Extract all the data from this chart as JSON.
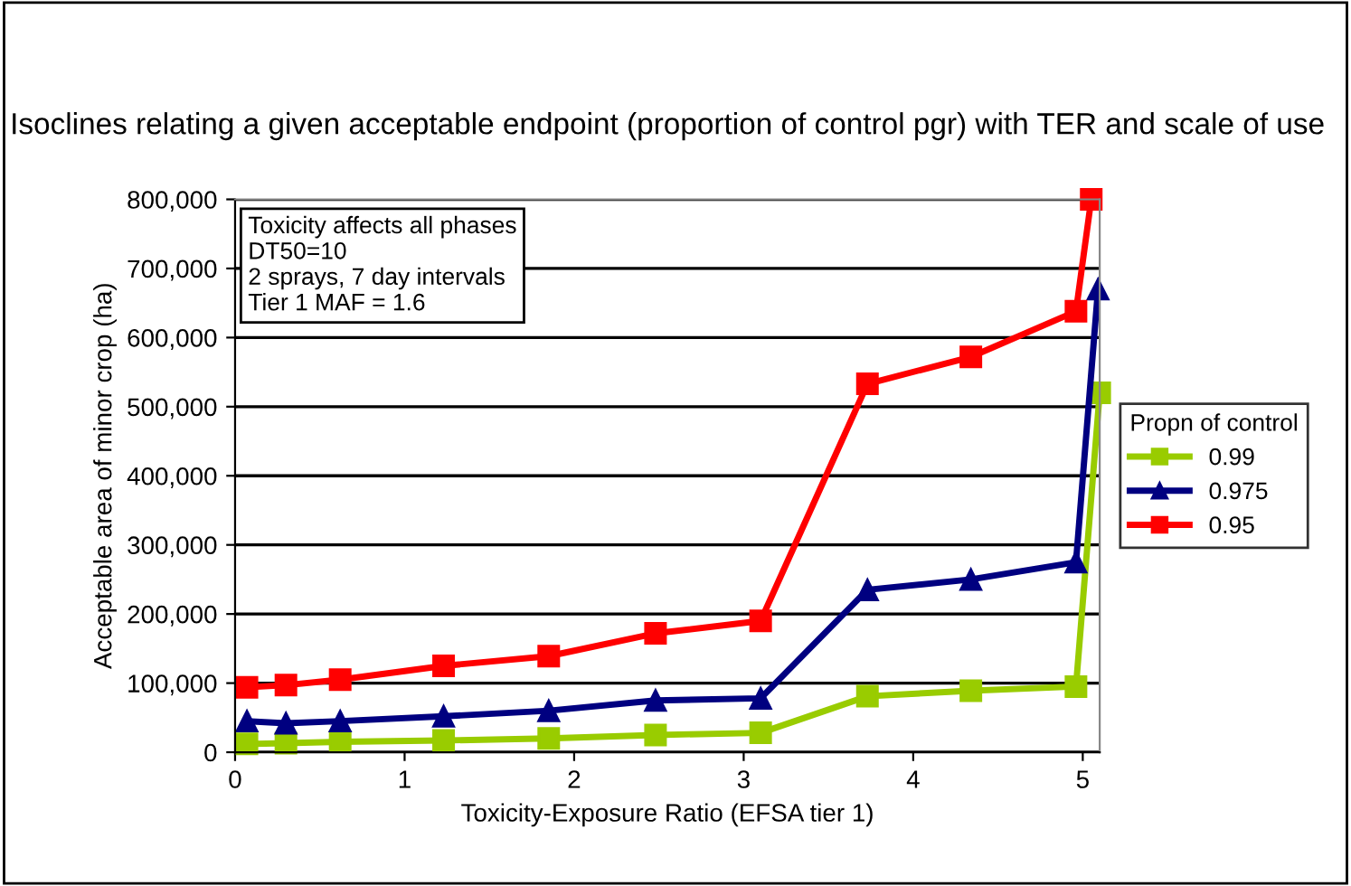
{
  "chart_data": {
    "type": "line",
    "title": "Isoclines relating a given acceptable endpoint (proportion of control pgr) with TER and scale of use",
    "xlabel": "Toxicity-Exposure Ratio (EFSA tier 1)",
    "ylabel": "Acceptable area of minor crop (ha)",
    "legend_title": "Propn of control",
    "annotations": [
      "Toxicity affects all phases\nDT50=10\n2 sprays, 7 day intervals\nTier 1 MAF = 1.6"
    ],
    "x": [
      0.07,
      0.3,
      0.62,
      1.23,
      1.85,
      2.48,
      3.1,
      3.73,
      4.34,
      4.96,
      5.1
    ],
    "series": [
      {
        "name": "0.99",
        "color": "#99cc00",
        "marker": "square",
        "values": [
          12000,
          13000,
          15000,
          17000,
          20000,
          25000,
          28000,
          81000,
          89000,
          95000,
          520000
        ]
      },
      {
        "name": "0.975",
        "color": "#000080",
        "marker": "triangle",
        "x": [
          0.07,
          0.3,
          0.62,
          1.23,
          1.85,
          2.48,
          3.1,
          3.73,
          4.34,
          4.96,
          5.09
        ],
        "values": [
          45000,
          42000,
          45000,
          52000,
          60000,
          75000,
          78000,
          235000,
          250000,
          275000,
          670000
        ]
      },
      {
        "name": "0.95",
        "color": "#ff0000",
        "marker": "square",
        "x": [
          0.07,
          0.3,
          0.62,
          1.23,
          1.85,
          2.48,
          3.1,
          3.73,
          4.34,
          4.96,
          5.05
        ],
        "values": [
          94000,
          97000,
          105000,
          125000,
          139000,
          172000,
          190000,
          533000,
          572000,
          638000,
          800000
        ]
      }
    ],
    "xlim": [
      0,
      5.1
    ],
    "xticks": [
      0,
      1,
      2,
      3,
      4,
      5
    ],
    "ylim": [
      0,
      800000
    ],
    "yticks": [
      {
        "value": 0,
        "label": "0"
      },
      {
        "value": 100000,
        "label": "100,000"
      },
      {
        "value": 200000,
        "label": "200,000"
      },
      {
        "value": 300000,
        "label": "300,000"
      },
      {
        "value": 400000,
        "label": "400,000"
      },
      {
        "value": 500000,
        "label": "500,000"
      },
      {
        "value": 600000,
        "label": "600,000"
      },
      {
        "value": 700000,
        "label": "700,000"
      },
      {
        "value": 800000,
        "label": "800,000"
      }
    ],
    "grid": "y",
    "legend": "right"
  }
}
